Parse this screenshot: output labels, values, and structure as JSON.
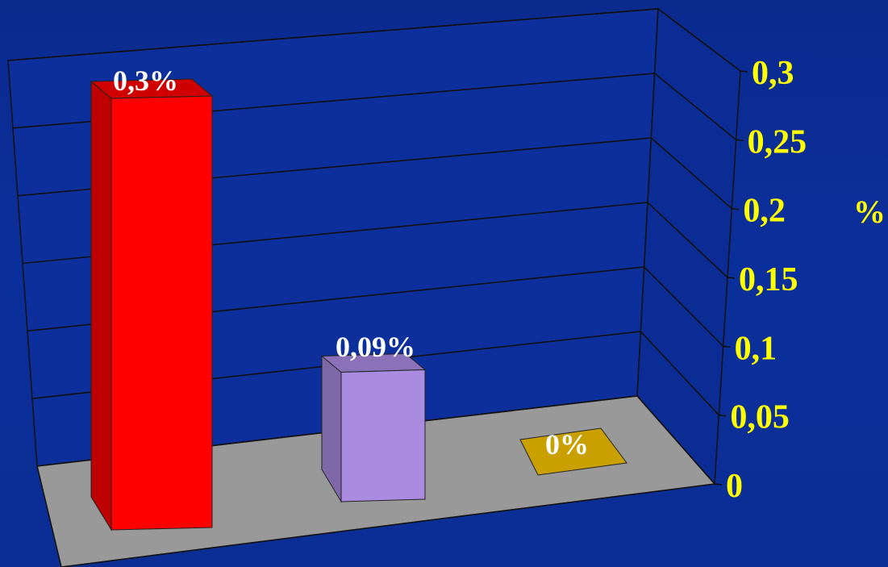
{
  "chart_data": {
    "type": "bar",
    "categories": [
      "",
      "",
      ""
    ],
    "values": [
      0.3,
      0.09,
      0
    ],
    "data_labels": [
      "0,3%",
      "0,09%",
      "0%"
    ],
    "colors": [
      "#ff0000",
      "#a98be0",
      "#c9a000"
    ],
    "ylabel": "%",
    "yticks": [
      "0",
      "0,05",
      "0,1",
      "0,15",
      "0,2",
      "0,25",
      "0,3"
    ],
    "ylim": [
      0,
      0.3
    ],
    "grid": true,
    "legend": "none",
    "style": "3d-column"
  },
  "colors": {
    "background": "#0b2f9a",
    "axis_text": "#ffff00",
    "label_text": "#ffffff",
    "floor": "#999999",
    "grid": "#111111"
  }
}
